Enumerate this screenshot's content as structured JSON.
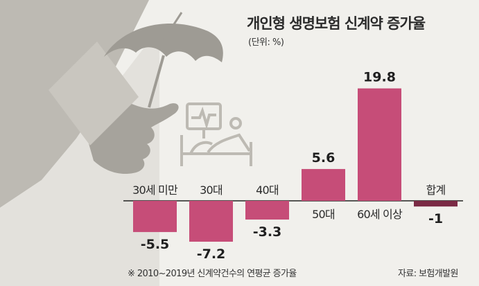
{
  "title": "개인형 생명보험 신계약 증가율",
  "unit": "(단위: %)",
  "footnote": "※ 2010~2019년 신계약건수의 연평균 증가율",
  "source": "자료: 보험개발원",
  "colors": {
    "bar": "#c64d78",
    "bar_negative_last": "#7a2a44",
    "background": "#f1f0ec",
    "illustration": "#bdbab3"
  },
  "illustration_icons": [
    "hand-icon",
    "umbrella-icon",
    "hospital-bed-icon",
    "heart-monitor-icon"
  ],
  "chart_data": {
    "type": "bar",
    "categories": [
      "30세 미만",
      "30대",
      "40대",
      "50대",
      "60세 이상",
      "합계"
    ],
    "values": [
      -5.5,
      -7.2,
      -3.3,
      5.6,
      19.8,
      -1
    ],
    "value_labels": [
      "-5.5",
      "-7.2",
      "-3.3",
      "5.6",
      "19.8",
      "-1"
    ],
    "ylim": [
      -7.2,
      19.8
    ],
    "grid": false,
    "legend": "none"
  }
}
